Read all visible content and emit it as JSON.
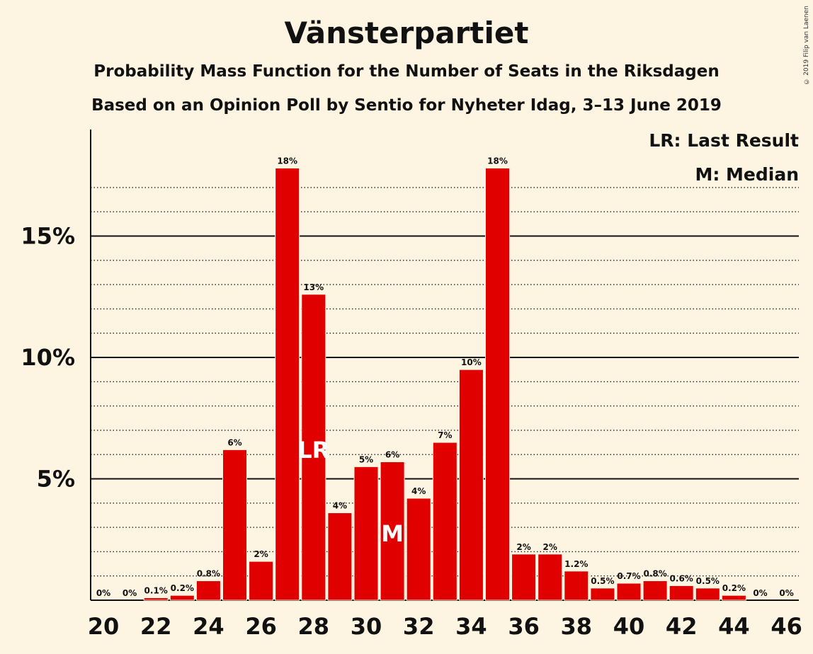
{
  "chart_data": {
    "type": "bar",
    "title": "Vänsterpartiet",
    "subtitle1": "Probability Mass Function for the Number of Seats in the Riksdagen",
    "subtitle2": "Based on an Opinion Poll by Sentio for Nyheter Idag, 3–13 June 2019",
    "copyright": "© 2019 Filip van Laenen",
    "legend": [
      "LR: Last Result",
      "M: Median"
    ],
    "x": [
      20,
      21,
      22,
      23,
      24,
      25,
      26,
      27,
      28,
      29,
      30,
      31,
      32,
      33,
      34,
      35,
      36,
      37,
      38,
      39,
      40,
      41,
      42,
      43,
      44,
      45,
      46
    ],
    "values": [
      0,
      0,
      0.1,
      0.2,
      0.8,
      6.2,
      1.6,
      17.8,
      12.6,
      3.6,
      5.5,
      5.7,
      4.2,
      6.5,
      9.5,
      17.8,
      1.9,
      1.9,
      1.2,
      0.5,
      0.7,
      0.8,
      0.6,
      0.5,
      0.2,
      0,
      0
    ],
    "value_labels": [
      "0%",
      "0%",
      "0.1%",
      "0.2%",
      "0.8%",
      "6%",
      "2%",
      "18%",
      "13%",
      "4%",
      "5%",
      "6%",
      "4%",
      "7%",
      "10%",
      "18%",
      "2%",
      "2%",
      "1.2%",
      "0.5%",
      "0.7%",
      "0.8%",
      "0.6%",
      "0.5%",
      "0.2%",
      "0%",
      "0%"
    ],
    "x_tick_labels": [
      "20",
      "22",
      "24",
      "26",
      "28",
      "30",
      "32",
      "34",
      "36",
      "38",
      "40",
      "42",
      "44",
      "46"
    ],
    "y_tick_labels": [
      "5%",
      "10%",
      "15%"
    ],
    "ylim": [
      0,
      19.5
    ],
    "last_result_seat": 28,
    "last_result_marker": "LR",
    "median_seat": 31,
    "median_marker": "M",
    "bar_color": "#e00000",
    "background": "#fdf5e2"
  }
}
